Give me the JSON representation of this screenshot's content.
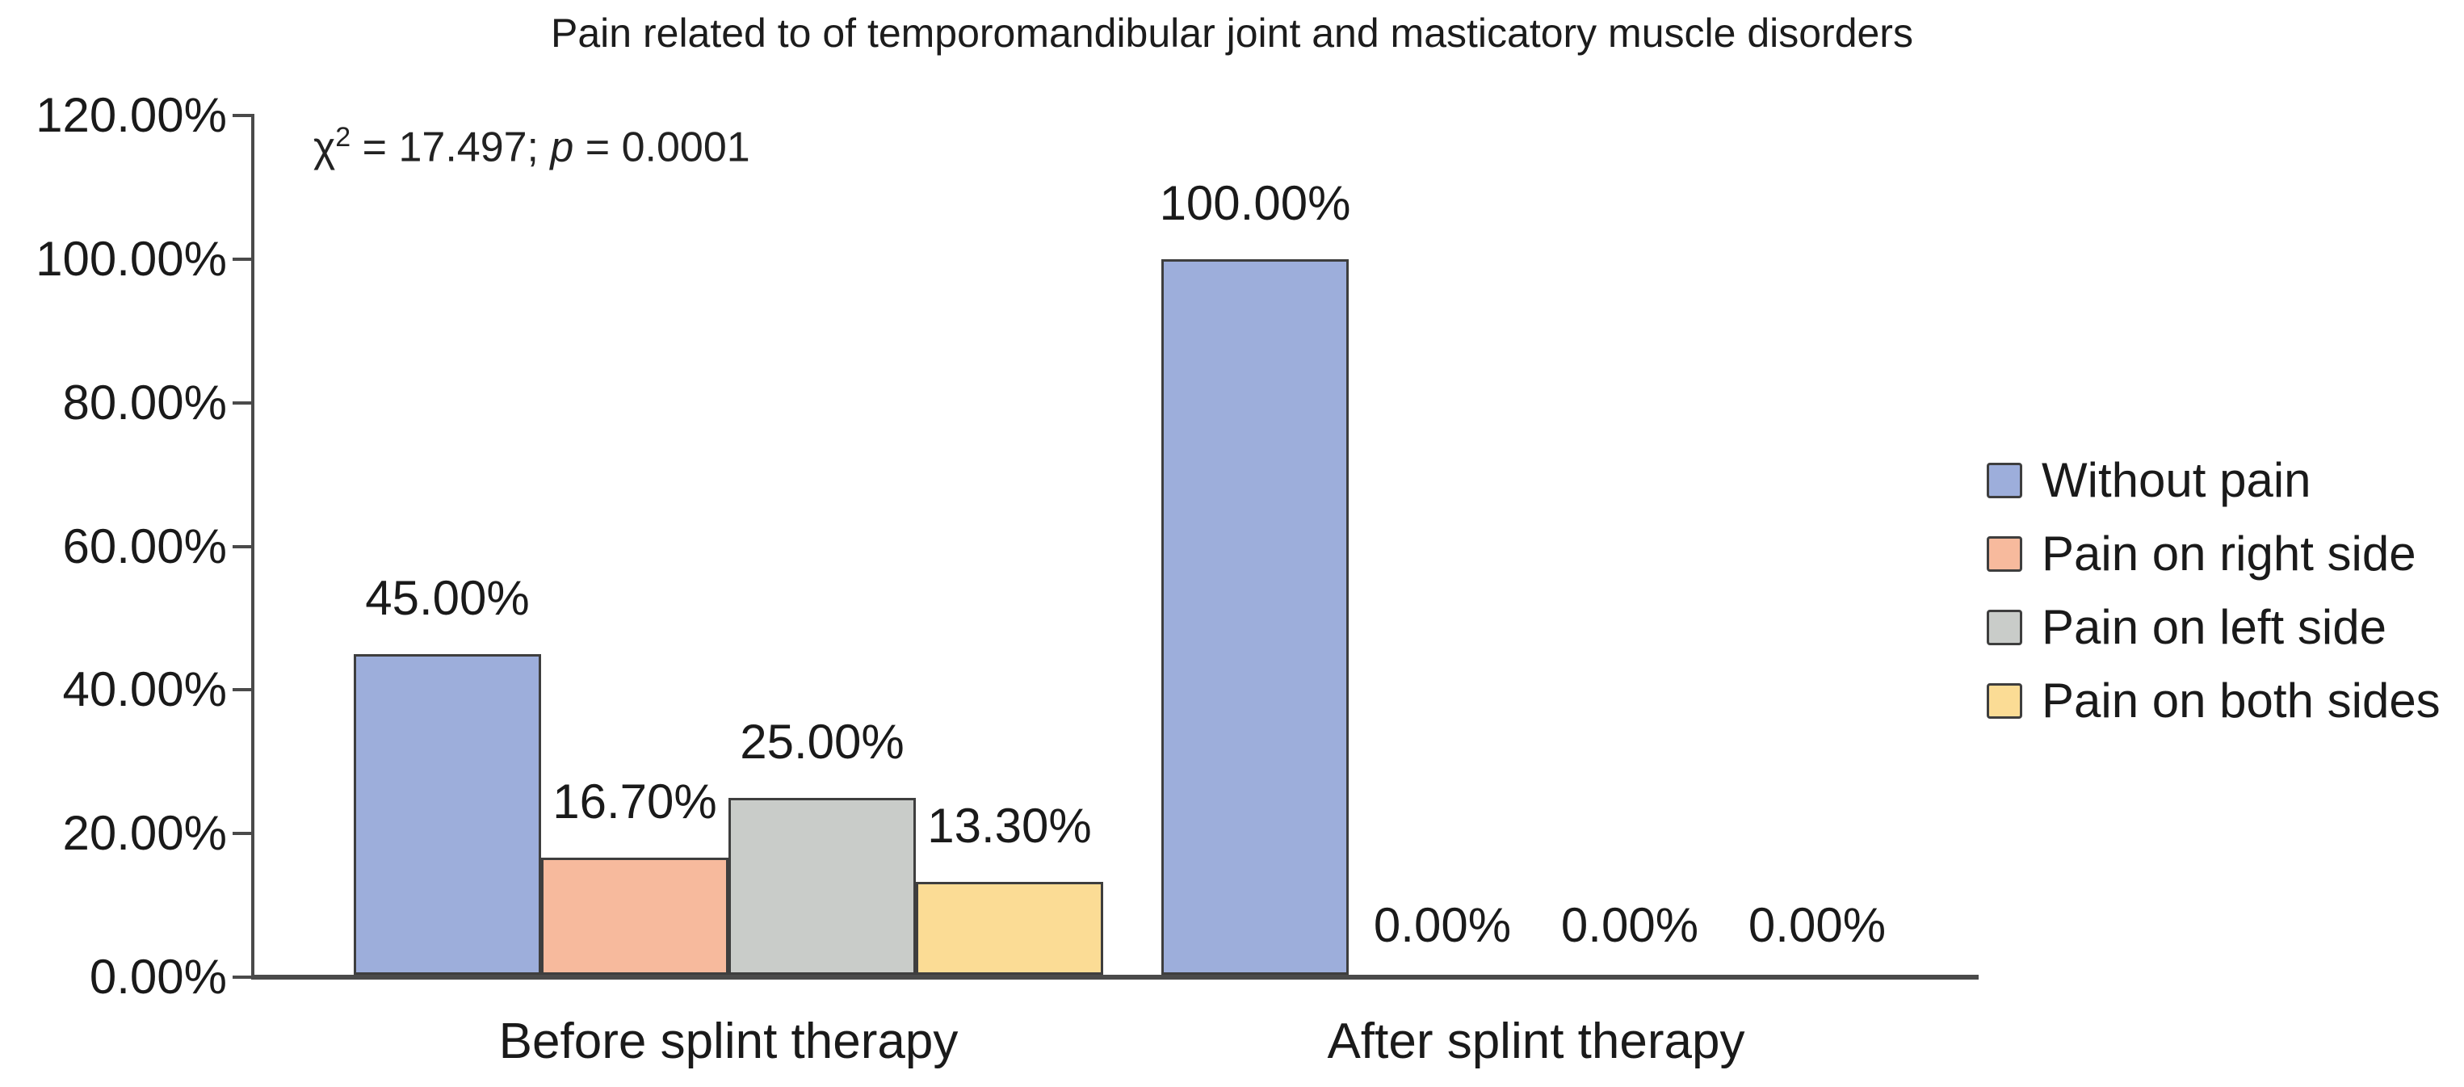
{
  "chart_data": {
    "type": "bar",
    "title": "Pain related to of temporomandibular joint and masticatory muscle disorders",
    "annotation": {
      "chi": "χ",
      "sup": "2",
      "mid": " = 17.497; ",
      "p": "p",
      "tail": " = 0.0001"
    },
    "categories": [
      "Before splint therapy",
      "After splint therapy"
    ],
    "series": [
      {
        "name": "Without pain",
        "color": "#9DAEDB",
        "values": [
          45.0,
          100.0
        ],
        "labels": [
          "45.00%",
          "100.00%"
        ]
      },
      {
        "name": "Pain on right side",
        "color": "#F7BA9D",
        "values": [
          16.7,
          0.0
        ],
        "labels": [
          "16.70%",
          "0.00%"
        ]
      },
      {
        "name": "Pain on left side",
        "color": "#C9CCC9",
        "values": [
          25.0,
          0.0
        ],
        "labels": [
          "25.00%",
          "0.00%"
        ]
      },
      {
        "name": "Pain on both sides",
        "color": "#FBDC95",
        "values": [
          13.3,
          0.0
        ],
        "labels": [
          "13.30%",
          "0.00%"
        ]
      }
    ],
    "y_axis": {
      "min": 0,
      "max": 120,
      "step": 20,
      "ticks": [
        {
          "value": 0,
          "label": "0.00%"
        },
        {
          "value": 20,
          "label": "20.00%"
        },
        {
          "value": 40,
          "label": "40.00%"
        },
        {
          "value": 60,
          "label": "60.00%"
        },
        {
          "value": 80,
          "label": "80.00%"
        },
        {
          "value": 100,
          "label": "100.00%"
        },
        {
          "value": 120,
          "label": "120.00%"
        }
      ]
    },
    "legend_position": "right",
    "grid": false,
    "axis_color": "#4a4a4a",
    "bar_border_color": "#3e3e3e"
  }
}
